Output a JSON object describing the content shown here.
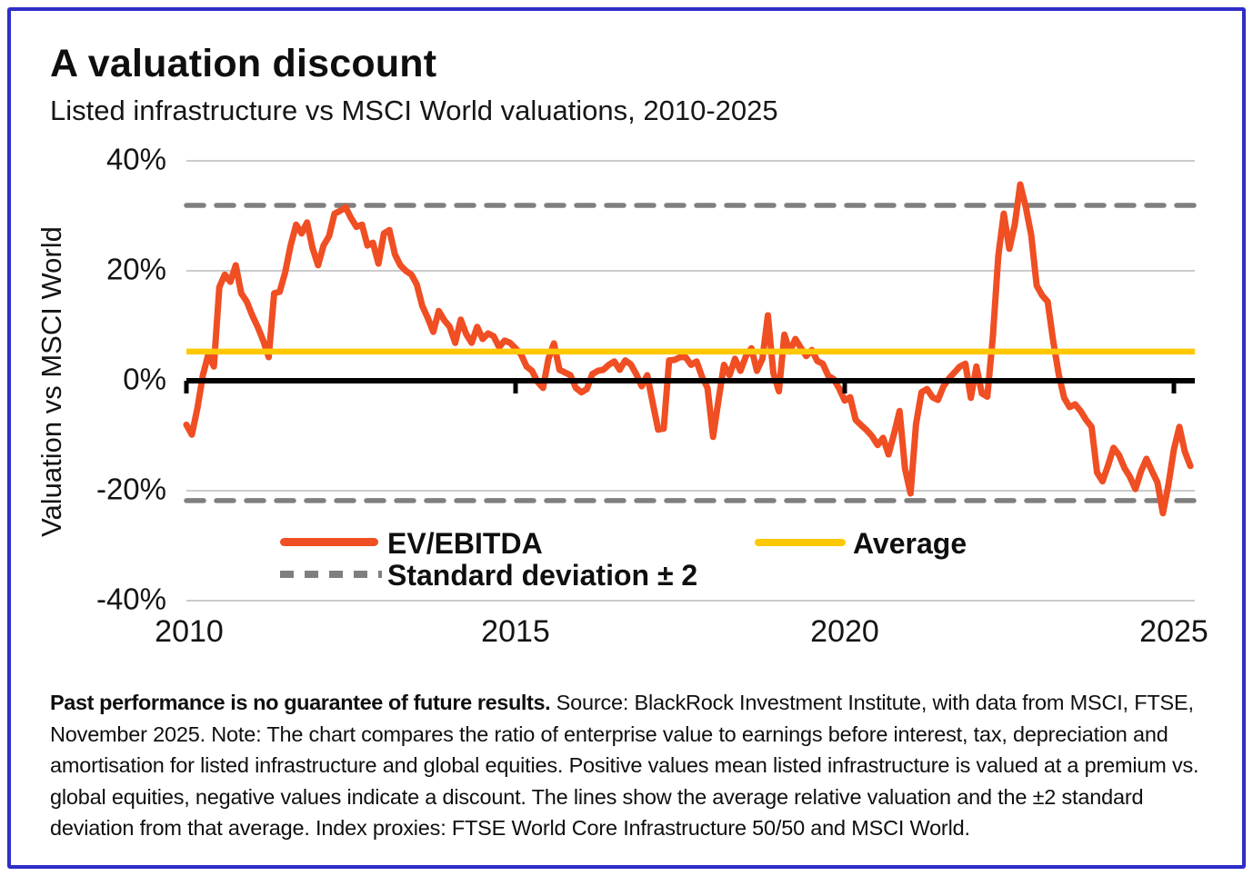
{
  "header": {
    "title": "A valuation discount",
    "subtitle": "Listed infrastructure vs MSCI World valuations, 2010-2025"
  },
  "chart_data": {
    "type": "line",
    "title": "A valuation discount",
    "subtitle": "Listed infrastructure vs MSCI World valuations, 2010-2025",
    "ylabel": "Valuation vs MSCI World",
    "xlabel": "",
    "ylim": [
      -40,
      40
    ],
    "xlim": [
      2010,
      2025.4
    ],
    "grid": true,
    "legend_position": "inside-bottom",
    "yticks": [
      {
        "value": 40,
        "label": "40%"
      },
      {
        "value": 20,
        "label": "20%"
      },
      {
        "value": 0,
        "label": "0%"
      },
      {
        "value": -20,
        "label": "-20%"
      },
      {
        "value": -40,
        "label": "-40%"
      }
    ],
    "xticks": [
      {
        "year": 2010,
        "label": "2010"
      },
      {
        "year": 2015,
        "label": "2015"
      },
      {
        "year": 2020,
        "label": "2020"
      },
      {
        "year": 2025,
        "label": "2025"
      }
    ],
    "reference_lines": {
      "average": 5.3,
      "std_upper": 31.9,
      "std_lower": -21.8,
      "zero_axis": 0
    },
    "colors": {
      "series": "#F04E23",
      "average": "#FFC805",
      "std": "#7F7F7F",
      "grid": "#CBCBCB",
      "zero_axis": "#000000"
    },
    "legend": [
      {
        "label": "EV/EBITDA",
        "color": "#F04E23",
        "style": "solid"
      },
      {
        "label": "Average",
        "color": "#FFC805",
        "style": "solid"
      },
      {
        "label": "Standard deviation ± 2",
        "color": "#7F7F7F",
        "style": "dashed"
      }
    ],
    "series": [
      {
        "name": "EV/EBITDA",
        "unit": "%",
        "start_year": 2010.0,
        "interval_years": 0.08333,
        "values": [
          -8.0,
          -9.8,
          -5.0,
          1.0,
          4.8,
          2.6,
          17.0,
          19.3,
          18.0,
          21.0,
          15.9,
          14.4,
          11.9,
          9.8,
          7.3,
          4.3,
          15.9,
          16.2,
          19.7,
          24.6,
          28.4,
          26.8,
          28.8,
          24.1,
          21.0,
          24.6,
          26.3,
          30.4,
          30.9,
          31.6,
          29.6,
          28.0,
          28.4,
          24.6,
          25.1,
          21.3,
          26.8,
          27.4,
          23.0,
          21.0,
          20.0,
          19.3,
          17.5,
          13.6,
          11.4,
          8.9,
          12.7,
          11.0,
          9.8,
          6.9,
          11.1,
          8.5,
          6.9,
          9.8,
          7.6,
          8.6,
          8.1,
          6.1,
          7.3,
          6.9,
          5.9,
          4.8,
          2.6,
          1.8,
          -0.2,
          -1.3,
          4.0,
          6.8,
          2.0,
          1.5,
          1.0,
          -1.3,
          -2.1,
          -1.5,
          1.2,
          1.8,
          2.0,
          2.9,
          3.5,
          2.0,
          3.7,
          3.0,
          1.2,
          -1.0,
          1.0,
          -4.0,
          -8.9,
          -8.7,
          3.7,
          3.8,
          4.3,
          4.3,
          2.9,
          3.5,
          0.7,
          -1.3,
          -10.2,
          -3.5,
          2.9,
          1.0,
          4.0,
          1.8,
          4.5,
          5.9,
          1.8,
          4.0,
          11.9,
          1.4,
          -1.9,
          8.4,
          5.3,
          7.6,
          6.0,
          4.5,
          5.6,
          3.6,
          3.1,
          0.9,
          0.3,
          -1.4,
          -3.6,
          -3.0,
          -7.1,
          -8.1,
          -9.0,
          -10.1,
          -11.7,
          -10.4,
          -13.4,
          -9.6,
          -5.5,
          -16.0,
          -20.5,
          -7.9,
          -2.1,
          -1.5,
          -3.0,
          -3.5,
          -1.0,
          0.4,
          1.5,
          2.6,
          3.1,
          -3.1,
          2.6,
          -2.3,
          -2.9,
          8.0,
          22.7,
          30.4,
          24.0,
          28.4,
          35.7,
          31.6,
          26.5,
          17.3,
          15.5,
          14.4,
          7.3,
          1.2,
          -3.1,
          -4.8,
          -4.3,
          -5.5,
          -7.1,
          -8.4,
          -16.7,
          -18.3,
          -15.4,
          -12.2,
          -13.5,
          -15.9,
          -17.5,
          -19.7,
          -16.5,
          -14.2,
          -16.4,
          -18.5,
          -24.1,
          -19.0,
          -12.5,
          -8.4,
          -12.9,
          -15.5
        ]
      }
    ]
  },
  "footnote": {
    "bold": "Past performance is no guarantee of future results.",
    "text": " Source: BlackRock Investment Institute, with data from MSCI, FTSE, November 2025. Note: The chart compares the ratio of enterprise value to earnings before interest, tax, depreciation and amortisation for listed infrastructure and global equities. Positive values mean listed infrastructure is valued at a premium vs. global equities, negative values indicate a discount. The lines show the average relative valuation and the ±2 standard deviation from that average. Index proxies: FTSE World Core Infrastructure 50/50 and MSCI World."
  }
}
